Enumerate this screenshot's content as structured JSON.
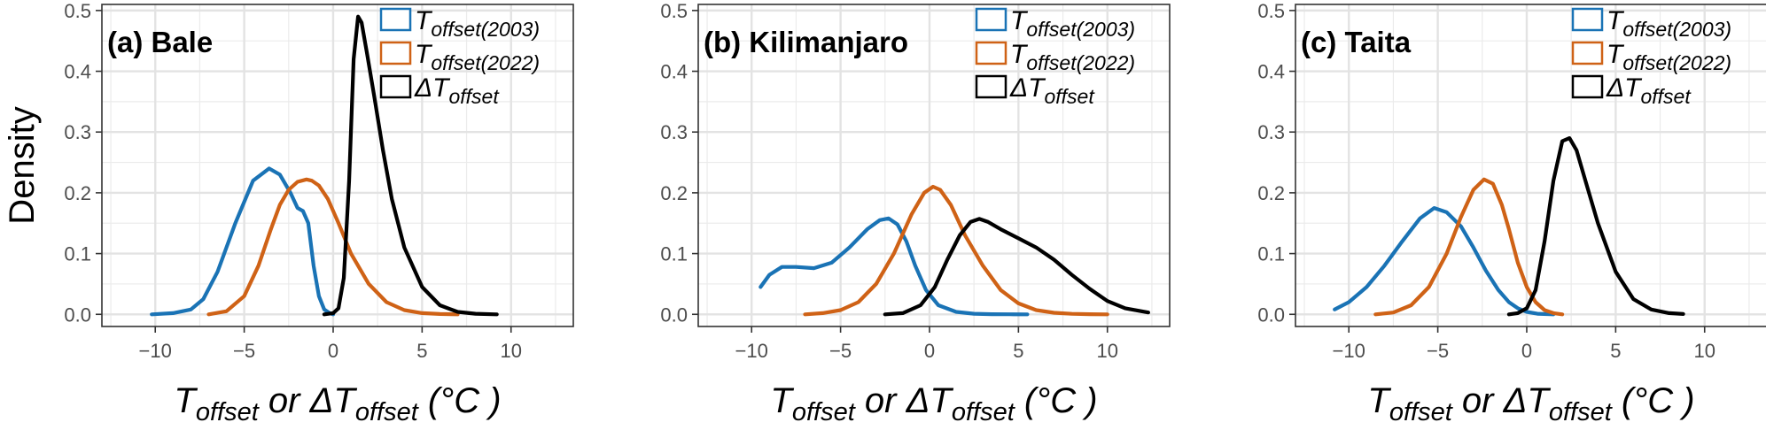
{
  "chart_data": {
    "type": "line",
    "ylabel": "Density",
    "xlabel": {
      "t": "T",
      "offset_sub": "offset",
      "or": " or ",
      "delta_t": "ΔT",
      "unit": " (°C )"
    },
    "legend_entries": [
      {
        "base": "T",
        "sub": "offset(2003)",
        "color": "#1a73b5"
      },
      {
        "base": "T",
        "sub": "offset(2022)",
        "color": "#cf6216"
      },
      {
        "base": "ΔT",
        "sub": "offset",
        "color": "#000000"
      }
    ],
    "xlim": [
      -13,
      13.5
    ],
    "ylim": [
      -0.02,
      0.51
    ],
    "x_ticks": [
      -10,
      -5,
      0,
      5,
      10
    ],
    "x_tick_labels": [
      "−10",
      "−5",
      "0",
      "5",
      "10"
    ],
    "y_ticks": [
      0.0,
      0.1,
      0.2,
      0.3,
      0.4,
      0.5
    ],
    "y_tick_labels": [
      "0.0",
      "0.1",
      "0.2",
      "0.3",
      "0.4",
      "0.5"
    ],
    "grid": true,
    "legend_position": "top-right",
    "panels": [
      {
        "label": "(a) Bale",
        "series": [
          {
            "color": "#1a73b5",
            "x": [
              -10.2,
              -9,
              -8,
              -7.3,
              -6.5,
              -5.5,
              -4.5,
              -3.6,
              -3,
              -2.4,
              -2,
              -1.7,
              -1.4,
              -1.1,
              -0.8,
              -0.5,
              -0.2,
              0
            ],
            "y": [
              0,
              0.002,
              0.008,
              0.025,
              0.07,
              0.15,
              0.22,
              0.24,
              0.23,
              0.2,
              0.175,
              0.17,
              0.15,
              0.08,
              0.03,
              0.008,
              0.002,
              0
            ]
          },
          {
            "color": "#cf6216",
            "x": [
              -7,
              -6,
              -5,
              -4.2,
              -3.5,
              -3,
              -2.5,
              -2,
              -1.5,
              -1.2,
              -0.8,
              -0.3,
              0.3,
              1,
              2,
              3,
              4,
              5,
              6,
              7
            ],
            "y": [
              0,
              0.005,
              0.03,
              0.08,
              0.14,
              0.18,
              0.205,
              0.218,
              0.222,
              0.22,
              0.212,
              0.19,
              0.15,
              0.1,
              0.05,
              0.02,
              0.007,
              0.002,
              0.0005,
              0
            ]
          },
          {
            "color": "#000000",
            "x": [
              -0.5,
              0,
              0.3,
              0.6,
              0.9,
              1.15,
              1.4,
              1.6,
              1.9,
              2.3,
              2.8,
              3.3,
              4,
              5,
              6,
              7,
              8,
              9.2
            ],
            "y": [
              0,
              0.002,
              0.01,
              0.06,
              0.22,
              0.42,
              0.49,
              0.48,
              0.43,
              0.36,
              0.27,
              0.19,
              0.11,
              0.045,
              0.015,
              0.004,
              0.001,
              0
            ]
          }
        ]
      },
      {
        "label": "(b) Kilimanjaro",
        "series": [
          {
            "color": "#1a73b5",
            "x": [
              -9.5,
              -9,
              -8.3,
              -7.5,
              -6.5,
              -5.5,
              -4.5,
              -3.5,
              -2.8,
              -2.3,
              -1.8,
              -1.3,
              -0.8,
              -0.2,
              0.5,
              1.5,
              2.5,
              3.5,
              4.5,
              5.5
            ],
            "y": [
              0.045,
              0.065,
              0.078,
              0.078,
              0.076,
              0.085,
              0.11,
              0.14,
              0.155,
              0.158,
              0.148,
              0.12,
              0.08,
              0.04,
              0.015,
              0.004,
              0.001,
              0.0003,
              0.0001,
              0
            ]
          },
          {
            "color": "#cf6216",
            "x": [
              -7,
              -6,
              -5,
              -4,
              -3,
              -2,
              -1,
              -0.3,
              0.2,
              0.6,
              1.2,
              2,
              3,
              4,
              5,
              6,
              7,
              8,
              9,
              10
            ],
            "y": [
              0,
              0.002,
              0.007,
              0.02,
              0.05,
              0.1,
              0.165,
              0.2,
              0.21,
              0.205,
              0.18,
              0.13,
              0.08,
              0.04,
              0.018,
              0.007,
              0.0025,
              0.0008,
              0.0002,
              0
            ]
          },
          {
            "color": "#000000",
            "x": [
              -2.5,
              -1.5,
              -0.5,
              0.3,
              1,
              1.7,
              2.3,
              2.8,
              3.3,
              4,
              5,
              6,
              7,
              8,
              9,
              10,
              11,
              12.3
            ],
            "y": [
              0,
              0.002,
              0.015,
              0.045,
              0.09,
              0.13,
              0.152,
              0.157,
              0.152,
              0.14,
              0.125,
              0.11,
              0.09,
              0.065,
              0.042,
              0.022,
              0.01,
              0.003
            ]
          }
        ]
      },
      {
        "label": "(c) Taita",
        "series": [
          {
            "color": "#1a73b5",
            "x": [
              -10.8,
              -10,
              -9,
              -8,
              -7,
              -6,
              -5.2,
              -4.5,
              -3.7,
              -3,
              -2.3,
              -1.6,
              -1,
              -0.5,
              0,
              0.6,
              1.5
            ],
            "y": [
              0.008,
              0.02,
              0.045,
              0.08,
              0.12,
              0.158,
              0.175,
              0.168,
              0.145,
              0.11,
              0.072,
              0.04,
              0.02,
              0.01,
              0.004,
              0.001,
              0
            ]
          },
          {
            "color": "#cf6216",
            "x": [
              -8.5,
              -7.5,
              -6.5,
              -5.5,
              -4.5,
              -3.7,
              -3,
              -2.4,
              -1.9,
              -1.4,
              -1,
              -0.5,
              0,
              0.5,
              1,
              1.5,
              2
            ],
            "y": [
              0,
              0.003,
              0.015,
              0.045,
              0.1,
              0.16,
              0.205,
              0.222,
              0.215,
              0.18,
              0.14,
              0.085,
              0.045,
              0.02,
              0.007,
              0.002,
              0
            ]
          },
          {
            "color": "#000000",
            "x": [
              -1,
              -0.5,
              0,
              0.5,
              1,
              1.5,
              2,
              2.4,
              2.8,
              3.3,
              4,
              5,
              6,
              7,
              8,
              8.8
            ],
            "y": [
              0,
              0.002,
              0.01,
              0.04,
              0.12,
              0.22,
              0.285,
              0.29,
              0.27,
              0.22,
              0.15,
              0.07,
              0.025,
              0.008,
              0.002,
              0.0005
            ]
          }
        ]
      }
    ]
  }
}
